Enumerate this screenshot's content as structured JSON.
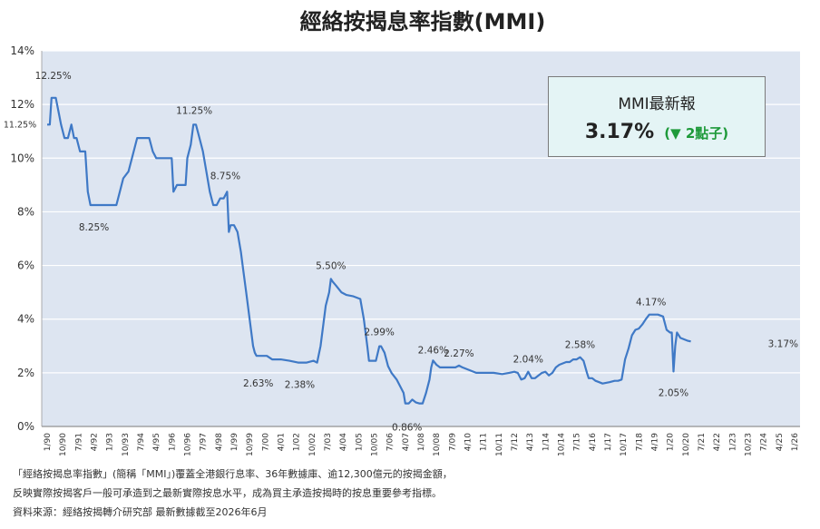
{
  "chart_data": {
    "type": "line",
    "title": "經絡按揭息率指數(MMI)",
    "xlabel": "",
    "ylabel": "",
    "ylim": [
      0,
      14
    ],
    "yticks": [
      "0%",
      "2%",
      "4%",
      "6%",
      "8%",
      "10%",
      "12%",
      "14%"
    ],
    "grid": true,
    "x_tick_labels": [
      "1/90",
      "10/90",
      "7/91",
      "4/92",
      "1/93",
      "10/93",
      "7/94",
      "4/95",
      "1/96",
      "10/96",
      "7/97",
      "4/98",
      "1/99",
      "10/99",
      "7/00",
      "4/01",
      "1/02",
      "10/02",
      "7/03",
      "4/04",
      "1/05",
      "10/05",
      "7/06",
      "4/07",
      "1/08",
      "10/08",
      "7/09",
      "4/10",
      "1/11",
      "10/11",
      "7/12",
      "4/13",
      "1/14",
      "10/14",
      "7/15",
      "4/16",
      "1/17",
      "10/17",
      "7/18",
      "4/19",
      "1/20",
      "10/20",
      "7/21",
      "4/22",
      "1/23",
      "10/23",
      "7/24",
      "4/25",
      "1/26"
    ],
    "series": [
      {
        "name": "",
        "color": "#3f79c6",
        "points": [
          [
            0,
            11.25
          ],
          [
            1.5,
            11.25
          ],
          [
            2.5,
            12.25
          ],
          [
            5,
            12.25
          ],
          [
            6.5,
            11.75
          ],
          [
            8,
            11.25
          ],
          [
            10,
            10.75
          ],
          [
            12,
            10.75
          ],
          [
            14,
            11.25
          ],
          [
            15.5,
            10.75
          ],
          [
            17,
            10.75
          ],
          [
            19,
            10.25
          ],
          [
            22,
            10.25
          ],
          [
            23.5,
            8.75
          ],
          [
            25,
            8.25
          ],
          [
            30,
            8.25
          ],
          [
            36,
            8.25
          ],
          [
            40,
            8.25
          ],
          [
            42,
            8.75
          ],
          [
            44,
            9.25
          ],
          [
            47,
            9.5
          ],
          [
            50,
            10.25
          ],
          [
            52,
            10.75
          ],
          [
            56,
            10.75
          ],
          [
            59,
            10.75
          ],
          [
            61,
            10.25
          ],
          [
            63,
            10
          ],
          [
            66,
            10
          ],
          [
            69,
            10
          ],
          [
            72,
            10
          ],
          [
            73,
            8.75
          ],
          [
            75,
            9
          ],
          [
            78,
            9
          ],
          [
            80,
            9
          ],
          [
            81,
            10
          ],
          [
            83,
            10.5
          ],
          [
            84.5,
            11.25
          ],
          [
            86,
            11.25
          ],
          [
            88,
            10.75
          ],
          [
            90,
            10.25
          ],
          [
            92,
            9.5
          ],
          [
            94,
            8.75
          ],
          [
            96,
            8.25
          ],
          [
            98,
            8.25
          ],
          [
            100,
            8.5
          ],
          [
            102,
            8.5
          ],
          [
            104,
            8.75
          ],
          [
            105,
            7.25
          ],
          [
            106,
            7.5
          ],
          [
            108,
            7.5
          ],
          [
            110,
            7.25
          ],
          [
            112,
            6.5
          ],
          [
            113,
            6
          ],
          [
            115,
            5
          ],
          [
            116,
            4.5
          ],
          [
            117,
            4
          ],
          [
            119,
            3
          ],
          [
            120,
            2.75
          ],
          [
            121,
            2.63
          ],
          [
            124,
            2.63
          ],
          [
            127,
            2.63
          ],
          [
            130,
            2.5
          ],
          [
            135,
            2.5
          ],
          [
            140,
            2.45
          ],
          [
            145,
            2.38
          ],
          [
            150,
            2.38
          ],
          [
            154,
            2.45
          ],
          [
            156,
            2.38
          ],
          [
            158,
            3
          ],
          [
            160,
            4
          ],
          [
            161,
            4.5
          ],
          [
            163,
            5
          ],
          [
            164,
            5.5
          ],
          [
            165,
            5.4
          ],
          [
            167,
            5.25
          ],
          [
            170,
            5
          ],
          [
            173,
            4.9
          ],
          [
            177,
            4.85
          ],
          [
            181,
            4.75
          ],
          [
            183,
            4
          ],
          [
            185,
            3
          ],
          [
            186,
            2.45
          ],
          [
            188,
            2.45
          ],
          [
            190,
            2.45
          ],
          [
            192,
            2.99
          ],
          [
            193,
            2.99
          ],
          [
            195,
            2.75
          ],
          [
            197,
            2.25
          ],
          [
            199,
            2
          ],
          [
            202,
            1.75
          ],
          [
            204,
            1.5
          ],
          [
            206,
            1.25
          ],
          [
            207,
            0.86
          ],
          [
            209,
            0.86
          ],
          [
            211,
            1
          ],
          [
            213,
            0.9
          ],
          [
            215,
            0.86
          ],
          [
            217,
            0.86
          ],
          [
            219,
            1.25
          ],
          [
            221,
            1.75
          ],
          [
            222,
            2.2
          ],
          [
            223,
            2.46
          ],
          [
            225,
            2.3
          ],
          [
            227,
            2.2
          ],
          [
            232,
            2.2
          ],
          [
            236,
            2.2
          ],
          [
            238,
            2.27
          ],
          [
            240,
            2.2
          ],
          [
            244,
            2.1
          ],
          [
            248,
            2
          ],
          [
            253,
            2
          ],
          [
            258,
            2
          ],
          [
            263,
            1.95
          ],
          [
            267,
            2
          ],
          [
            270,
            2.04
          ],
          [
            272,
            2
          ],
          [
            274,
            1.75
          ],
          [
            276,
            1.8
          ],
          [
            278,
            2.04
          ],
          [
            280,
            1.8
          ],
          [
            282,
            1.8
          ],
          [
            284,
            1.9
          ],
          [
            286,
            2
          ],
          [
            288,
            2.04
          ],
          [
            290,
            1.9
          ],
          [
            292,
            2
          ],
          [
            294,
            2.2
          ],
          [
            296,
            2.3
          ],
          [
            298,
            2.35
          ],
          [
            300,
            2.4
          ],
          [
            302,
            2.4
          ],
          [
            304,
            2.5
          ],
          [
            306,
            2.5
          ],
          [
            308,
            2.58
          ],
          [
            310,
            2.45
          ],
          [
            312,
            2
          ],
          [
            313,
            1.8
          ],
          [
            315,
            1.8
          ],
          [
            317,
            1.7
          ],
          [
            319,
            1.65
          ],
          [
            321,
            1.6
          ],
          [
            325,
            1.65
          ],
          [
            328,
            1.7
          ],
          [
            330,
            1.7
          ],
          [
            332,
            1.75
          ],
          [
            334,
            2.5
          ],
          [
            336,
            2.9
          ],
          [
            338,
            3.4
          ],
          [
            340,
            3.6
          ],
          [
            342,
            3.65
          ],
          [
            344,
            3.8
          ],
          [
            346,
            4
          ],
          [
            348,
            4.17
          ],
          [
            350,
            4.17
          ],
          [
            353,
            4.17
          ],
          [
            356,
            4.1
          ],
          [
            358,
            3.6
          ],
          [
            360,
            3.5
          ],
          [
            361,
            3.5
          ],
          [
            362,
            2.05
          ],
          [
            363,
            3
          ],
          [
            364,
            3.5
          ],
          [
            366,
            3.3
          ],
          [
            368,
            3.25
          ],
          [
            370,
            3.2
          ],
          [
            372,
            3.17
          ]
        ]
      }
    ],
    "annotations": [
      "12.25%",
      "11.25%",
      "11.25%",
      "8.25%",
      "8.75%",
      "2.63%",
      "2.38%",
      "5.50%",
      "2.99%",
      "0.86%",
      "2.46%",
      "2.27%",
      "2.04%",
      "2.58%",
      "4.17%",
      "2.05%",
      "3.17%"
    ]
  },
  "info_box": {
    "title": "MMI最新報",
    "value": "3.17%",
    "change": "(▼ 2點子)"
  },
  "footnotes": [
    "「經絡按揭息率指數」(簡稱「MMI」)覆蓋全港銀行息率、36年數據庫、逾12,300億元的按揭金額，",
    "反映實際按揭客戶一般可承造到之最新實際按息水平，成為買主承造按揭時的按息重要參考指標。",
    "資料來源：經絡按揭轉介研究部   最新數據截至2026年6月"
  ]
}
